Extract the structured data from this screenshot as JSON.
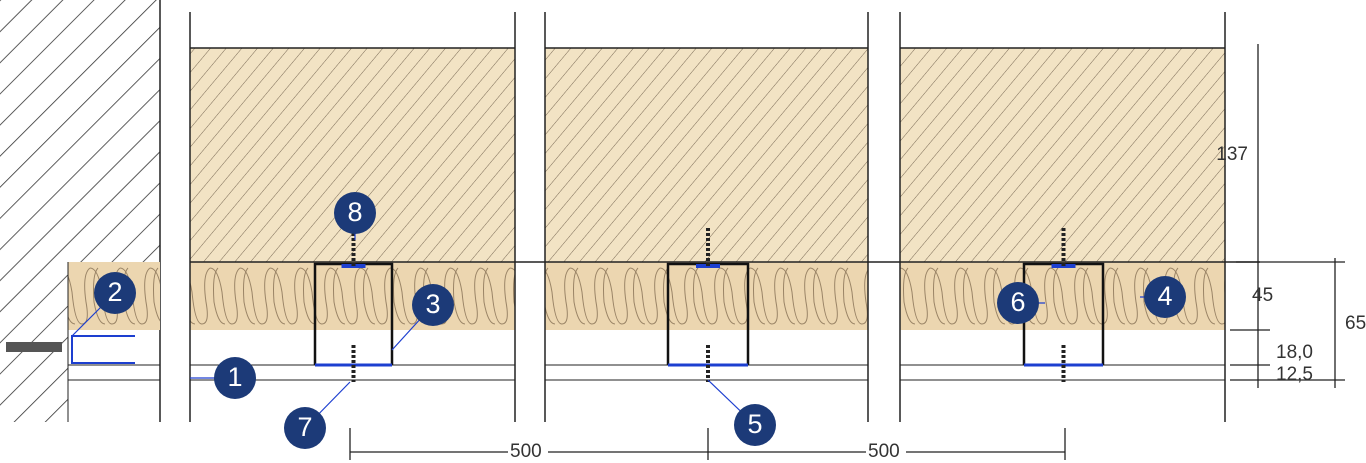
{
  "callouts": [
    {
      "label": "1"
    },
    {
      "label": "2"
    },
    {
      "label": "3"
    },
    {
      "label": "4"
    },
    {
      "label": "5"
    },
    {
      "label": "6"
    },
    {
      "label": "7"
    },
    {
      "label": "8"
    }
  ],
  "dimensions": [
    {
      "label": "137"
    },
    {
      "label": "45"
    },
    {
      "label": "65"
    },
    {
      "label": "18,0"
    },
    {
      "label": "12,5"
    },
    {
      "label": "500"
    },
    {
      "label": "500"
    }
  ]
}
